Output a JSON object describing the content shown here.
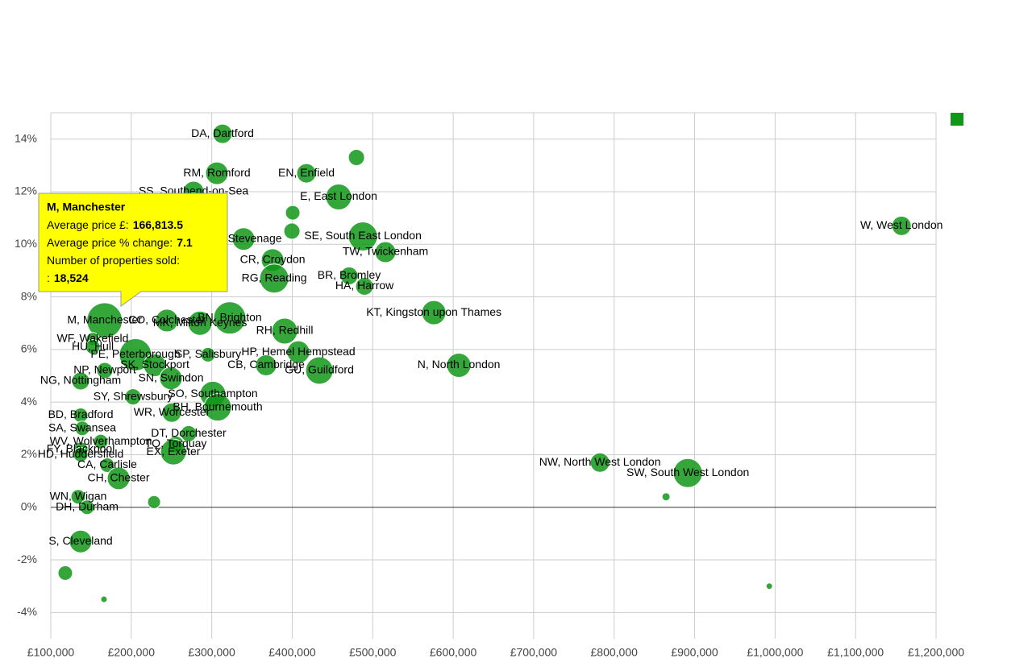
{
  "chart_data": {
    "type": "bubble",
    "xlim": [
      100000,
      1200000
    ],
    "ylim": [
      -5,
      15
    ],
    "xticks": [
      {
        "value": 100000,
        "label": "£100,000"
      },
      {
        "value": 200000,
        "label": "£200,000"
      },
      {
        "value": 300000,
        "label": "£300,000"
      },
      {
        "value": 400000,
        "label": "£400,000"
      },
      {
        "value": 500000,
        "label": "£500,000"
      },
      {
        "value": 600000,
        "label": "£600,000"
      },
      {
        "value": 700000,
        "label": "£700,000"
      },
      {
        "value": 800000,
        "label": "£800,000"
      },
      {
        "value": 900000,
        "label": "£900,000"
      },
      {
        "value": 1000000,
        "label": "£1,000,000"
      },
      {
        "value": 1100000,
        "label": "£1,100,000"
      },
      {
        "value": 1200000,
        "label": "£1,200,000"
      }
    ],
    "yticks": [
      {
        "value": -4,
        "label": "-4%"
      },
      {
        "value": -2,
        "label": "-2%"
      },
      {
        "value": 0,
        "label": "0%"
      },
      {
        "value": 2,
        "label": "2%"
      },
      {
        "value": 4,
        "label": "4%"
      },
      {
        "value": 6,
        "label": "6%"
      },
      {
        "value": 8,
        "label": "8%"
      },
      {
        "value": 10,
        "label": "10%"
      },
      {
        "value": 12,
        "label": "12%"
      },
      {
        "value": 14,
        "label": "14%"
      }
    ],
    "grid": true,
    "series": [
      {
        "color": "#109618",
        "labels": [
          "DA, Dartford",
          "RM, Romford",
          "EN, Enfield",
          null,
          "SS, Southend-on-Sea",
          "E, East London",
          null,
          "W, West London",
          "SG, Stevenage",
          "SE, South East London",
          null,
          "TW, Twickenham",
          "CR, Croydon",
          "RG, Reading",
          "BR, Bromley",
          "HA, Harrow",
          "KT, Kingston upon Thames",
          "M, Manchester",
          "CO, Colchester",
          "MK, Milton Keynes",
          "BN, Brighton",
          "RH, Redhill",
          "WF, Wakefield",
          "HU, Hull",
          "PE, Peterborough",
          "SP, Salisbury",
          "HP, Hemel Hempstead",
          "SK, Stockport",
          "CB, Cambridge",
          "GU, Guildford",
          "N, North London",
          "NP, Newport",
          "SN, Swindon",
          "NG, Nottingham",
          "SO, Southampton",
          "SY, Shrewsbury",
          "BH, Bournemouth",
          "WR, Worcester",
          "BD, Bradford",
          "SA, Swansea",
          "WV, Wolverhampton",
          "DT, Dorchester",
          "TQ, Torquay",
          "EX, Exeter",
          "FY, Blackpool",
          "HD, Huddersfield",
          "CA, Carlisle",
          "CH, Chester",
          "NW, North West London",
          "SW, South West London",
          null,
          "WN, Wigan",
          "DH, Durham",
          null,
          "S, Cleveland",
          null,
          null,
          null
        ],
        "x": [
          313400,
          306400,
          417600,
          479800,
          277400,
          457700,
          400600,
          1157100,
          339500,
          487800,
          399600,
          515800,
          375600,
          377600,
          470700,
          489800,
          576000,
          166813.5,
          244300,
          285400,
          322400,
          390600,
          152100,
          152100,
          205200,
          295400,
          407600,
          229300,
          367500,
          433700,
          607000,
          167100,
          249300,
          137100,
          301400,
          202200,
          307400,
          250300,
          137100,
          139100,
          162100,
          271300,
          255300,
          252300,
          137100,
          137100,
          170100,
          184200,
          782400,
          891600,
          864500,
          134100,
          145100,
          228300,
          137100,
          118000,
          166100,
          992800
        ],
        "values": [
          14.2,
          12.7,
          12.7,
          13.3,
          12.0,
          11.8,
          11.2,
          10.7,
          10.2,
          10.3,
          10.5,
          9.7,
          9.4,
          8.7,
          8.8,
          8.4,
          7.4,
          7.1,
          7.1,
          7.0,
          7.2,
          6.7,
          6.4,
          6.1,
          5.8,
          5.8,
          5.9,
          5.4,
          5.4,
          5.2,
          5.4,
          5.2,
          4.9,
          4.8,
          4.3,
          4.2,
          3.8,
          3.6,
          3.5,
          3.0,
          2.5,
          2.8,
          2.4,
          2.1,
          2.2,
          2.0,
          1.6,
          1.1,
          1.7,
          1.3,
          0.4,
          0.4,
          0.0,
          0.2,
          -1.3,
          -2.5,
          -3.5,
          -3.0
        ],
        "sizes": [
          5511,
          7501,
          5511,
          3827,
          6468,
          9797,
          3100,
          5511,
          7501,
          12400,
          3827,
          6468,
          7501,
          12400,
          4631,
          4631,
          8611,
          18524,
          7501,
          8611,
          15308,
          9797,
          2449,
          3100,
          15308,
          3100,
          7501,
          7501,
          6468,
          11060,
          8611,
          3827,
          7501,
          4631,
          9797,
          3827,
          11060,
          5511,
          3100,
          3100,
          3100,
          3827,
          3827,
          9797,
          3100,
          3100,
          3100,
          7501,
          5511,
          12400,
          957,
          3100,
          3100,
          2449,
          7501,
          3100,
          612,
          612
        ]
      }
    ],
    "tooltip": {
      "title": "M, Manchester",
      "lines": [
        {
          "label": "Average price £:",
          "value": "166,813.5"
        },
        {
          "label": "Average price % change:",
          "value": "7.1"
        },
        {
          "label": "Number of properties sold:"
        },
        {
          "label": ":",
          "value": "18,524"
        }
      ]
    }
  }
}
